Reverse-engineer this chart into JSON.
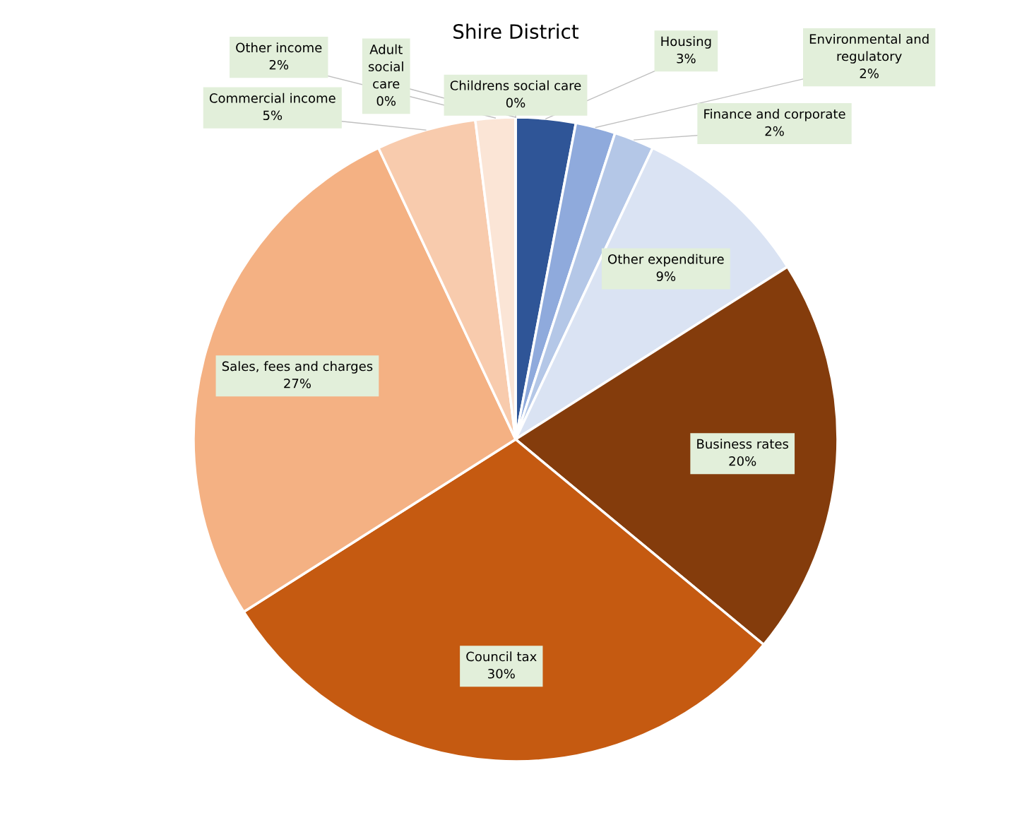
{
  "chart_data": {
    "type": "pie",
    "title": "Shire District",
    "categories": [
      "Childrens social care",
      "Housing",
      "Environmental and regulatory",
      "Finance and corporate",
      "Other expenditure",
      "Business rates",
      "Council tax",
      "Sales, fees and charges",
      "Commercial income",
      "Other income",
      "Adult social care"
    ],
    "values": [
      0,
      3,
      2,
      2,
      9,
      20,
      30,
      27,
      5,
      2,
      0
    ],
    "value_labels": [
      "0%",
      "3%",
      "2%",
      "2%",
      "9%",
      "20%",
      "30%",
      "27%",
      "5%",
      "2%",
      "0%"
    ],
    "colors": [
      "#203864",
      "#2f5597",
      "#8faadc",
      "#b4c7e7",
      "#dae3f3",
      "#843c0c",
      "#c55a11",
      "#f4b183",
      "#f8cbad",
      "#fbe5d6",
      "#fbe5d6"
    ]
  }
}
